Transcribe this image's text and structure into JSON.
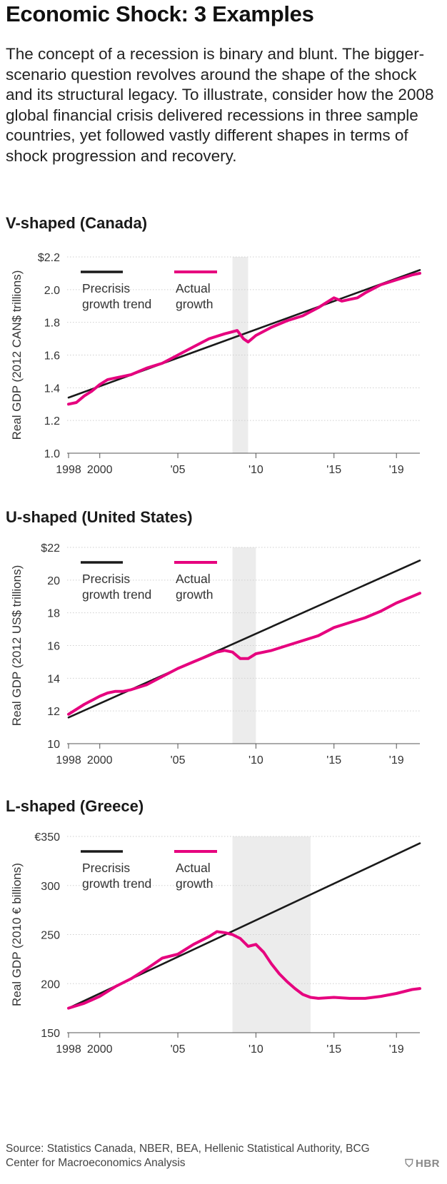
{
  "title": "Economic Shock: 3 Examples",
  "intro": "The concept of a recession is binary and blunt. The bigger-scenario question revolves around the shape of the shock and its structural legacy. To illustrate, consider how the 2008 global financial crisis delivered recessions in three sample countries, yet followed vastly different shapes in terms of shock progression and recovery.",
  "source": "Source: Statistics Canada, NBER, BEA, Hellenic Statistical Authority, BCG Center for Macroeconomics Analysis",
  "brand": "HBR",
  "colors": {
    "trend": "#1a1a1a",
    "actual": "#e6007e",
    "recession": "#ececec",
    "grid": "#cfcfcf"
  },
  "chart_data": [
    {
      "type": "line",
      "title": "V-shaped (Canada)",
      "ylabel": "Real GDP (2012 CAN$ trillions)",
      "xlim": [
        1998,
        2020.5
      ],
      "ylim": [
        1.0,
        2.2
      ],
      "yticks": [
        1.0,
        1.2,
        1.4,
        1.6,
        1.8,
        2.0,
        2.2
      ],
      "ytick_labels": [
        "1.0",
        "1.2",
        "1.4",
        "1.6",
        "1.8",
        "2.0",
        "$2.2"
      ],
      "xticks": [
        1998,
        2000,
        2005,
        2010,
        2015,
        2019
      ],
      "xtick_labels": [
        "1998",
        "2000",
        "'05",
        "'10",
        "'15",
        "'19"
      ],
      "recession": [
        2008.5,
        2009.5
      ],
      "legend": {
        "trend": "Precrisis growth trend",
        "actual": "Actual growth",
        "position": "top-left"
      },
      "series": [
        {
          "name": "Precrisis growth trend",
          "x": [
            1998,
            2020.5
          ],
          "y": [
            1.34,
            2.12
          ]
        },
        {
          "name": "Actual growth",
          "x": [
            1998,
            1998.5,
            1999,
            1999.5,
            2000,
            2000.5,
            2001,
            2001.5,
            2002,
            2003,
            2004,
            2005,
            2006,
            2007,
            2008,
            2008.4,
            2008.8,
            2009.2,
            2009.5,
            2010,
            2011,
            2012,
            2013,
            2014,
            2015,
            2015.5,
            2016,
            2016.5,
            2017,
            2018,
            2019,
            2020,
            2020.5
          ],
          "y": [
            1.3,
            1.31,
            1.35,
            1.38,
            1.42,
            1.45,
            1.46,
            1.47,
            1.48,
            1.52,
            1.55,
            1.6,
            1.65,
            1.7,
            1.73,
            1.74,
            1.75,
            1.7,
            1.68,
            1.72,
            1.77,
            1.81,
            1.84,
            1.89,
            1.95,
            1.93,
            1.94,
            1.95,
            1.98,
            2.03,
            2.06,
            2.09,
            2.1
          ]
        }
      ]
    },
    {
      "type": "line",
      "title": "U-shaped (United States)",
      "ylabel": "Real GDP (2012 US$ trillions)",
      "xlim": [
        1998,
        2020.5
      ],
      "ylim": [
        10,
        22
      ],
      "yticks": [
        10,
        12,
        14,
        16,
        18,
        20,
        22
      ],
      "ytick_labels": [
        "10",
        "12",
        "14",
        "16",
        "18",
        "20",
        "$22"
      ],
      "xticks": [
        1998,
        2000,
        2005,
        2010,
        2015,
        2019
      ],
      "xtick_labels": [
        "1998",
        "2000",
        "'05",
        "'10",
        "'15",
        "'19"
      ],
      "recession": [
        2008.5,
        2010.0
      ],
      "legend": {
        "trend": "Precrisis growth trend",
        "actual": "Actual growth",
        "position": "top-left"
      },
      "series": [
        {
          "name": "Precrisis growth trend",
          "x": [
            1998,
            2020.5
          ],
          "y": [
            11.6,
            21.2
          ]
        },
        {
          "name": "Actual growth",
          "x": [
            1998,
            1999,
            2000,
            2000.5,
            2001,
            2001.5,
            2002,
            2003,
            2004,
            2005,
            2006,
            2007,
            2007.5,
            2008,
            2008.5,
            2009,
            2009.5,
            2010,
            2011,
            2012,
            2013,
            2014,
            2015,
            2016,
            2017,
            2018,
            2019,
            2020,
            2020.5
          ],
          "y": [
            11.8,
            12.4,
            12.9,
            13.1,
            13.2,
            13.2,
            13.3,
            13.6,
            14.1,
            14.6,
            15.0,
            15.4,
            15.6,
            15.7,
            15.6,
            15.2,
            15.2,
            15.5,
            15.7,
            16.0,
            16.3,
            16.6,
            17.1,
            17.4,
            17.7,
            18.1,
            18.6,
            19.0,
            19.2
          ]
        }
      ]
    },
    {
      "type": "line",
      "title": "L-shaped (Greece)",
      "ylabel": "Real GDP (2010 € billions)",
      "xlim": [
        1998,
        2020.5
      ],
      "ylim": [
        150,
        350
      ],
      "yticks": [
        150,
        200,
        250,
        300,
        350
      ],
      "ytick_labels": [
        "150",
        "200",
        "250",
        "300",
        "€350"
      ],
      "xticks": [
        1998,
        2000,
        2005,
        2010,
        2015,
        2019
      ],
      "xtick_labels": [
        "1998",
        "2000",
        "'05",
        "'10",
        "'15",
        "'19"
      ],
      "recession": [
        2008.5,
        2013.5
      ],
      "legend": {
        "trend": "Precrisis growth trend",
        "actual": "Actual growth",
        "position": "top-left"
      },
      "series": [
        {
          "name": "Precrisis growth trend",
          "x": [
            1998,
            2020.5
          ],
          "y": [
            175,
            343
          ]
        },
        {
          "name": "Actual growth",
          "x": [
            1998,
            1999,
            2000,
            2001,
            2002,
            2003,
            2004,
            2005,
            2006,
            2007,
            2007.5,
            2008,
            2008.5,
            2009,
            2009.5,
            2010,
            2010.5,
            2011,
            2011.5,
            2012,
            2012.5,
            2013,
            2013.5,
            2014,
            2015,
            2016,
            2017,
            2018,
            2019,
            2020,
            2020.5
          ],
          "y": [
            175,
            180,
            187,
            197,
            205,
            215,
            226,
            230,
            240,
            248,
            253,
            252,
            250,
            246,
            238,
            240,
            232,
            220,
            210,
            202,
            195,
            189,
            186,
            185,
            186,
            185,
            185,
            187,
            190,
            194,
            195
          ]
        }
      ]
    }
  ]
}
